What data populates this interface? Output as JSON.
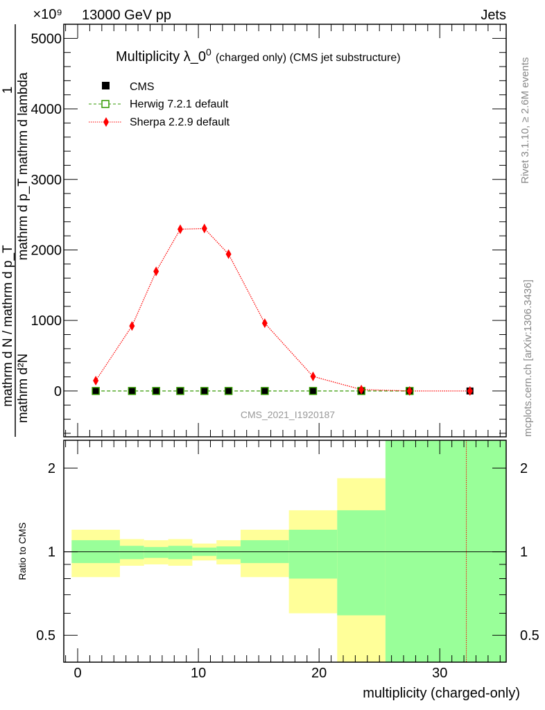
{
  "header": {
    "left": "13000 GeV pp",
    "right": "Jets",
    "exponent": "×10⁹",
    "side_top": "Rivet 3.1.10, ≥ 2.6M events",
    "side_bottom": "mcplots.cern.ch [arXiv:1306.3436]",
    "watermark": "CMS_2021_I1920187"
  },
  "chart_data": [
    {
      "type": "line",
      "title_main": "Multiplicity λ_0",
      "title_sup": "0",
      "title_sub": "(charged only) (CMS jet substructure)",
      "ylabel_outer_num": "1",
      "ylabel_outer_den": "mathrm d N / mathrm d p_T",
      "ylabel_inner_num": "mathrm d²N",
      "ylabel_inner_den": "mathrm d p_T mathrm d lambda",
      "xlim": [
        -1.15,
        35.5
      ],
      "ylim": [
        -650,
        5200
      ],
      "yticks": [
        0,
        1000,
        2000,
        3000,
        4000,
        5000
      ],
      "ytick_labels": [
        "0",
        "1000",
        "2000",
        "3000",
        "4000",
        "5000"
      ],
      "series": [
        {
          "name": "CMS",
          "color": "#000000",
          "marker": "square",
          "x": [
            1.5,
            4.5,
            6.5,
            8.5,
            10.5,
            12.5,
            15.5,
            19.5,
            23.5,
            27.5,
            32.5
          ],
          "y": [
            0,
            0,
            0,
            0,
            0,
            0,
            0,
            0,
            0,
            0,
            0
          ]
        },
        {
          "name": "Herwig 7.2.1 default",
          "color": "#339900",
          "marker": "open-square",
          "line": "dashed",
          "x": [
            1.5,
            4.5,
            6.5,
            8.5,
            10.5,
            12.5,
            15.5,
            19.5,
            23.5,
            27.5
          ],
          "y": [
            0,
            0,
            0,
            0,
            0,
            0,
            0,
            0,
            0,
            0
          ]
        },
        {
          "name": "Sherpa 2.2.9 default",
          "color": "#ff0000",
          "marker": "diamond",
          "line": "dotted",
          "x": [
            1.5,
            4.5,
            6.5,
            8.5,
            10.5,
            12.5,
            15.5,
            19.5,
            23.5,
            27.5,
            32.5
          ],
          "y": [
            147,
            922,
            1696,
            2294,
            2304,
            1941,
            961,
            206,
            20,
            0,
            0
          ]
        }
      ],
      "legend": "top-left"
    },
    {
      "type": "area",
      "ylabel": "Ratio to CMS",
      "xlabel": "multiplicity (charged-only)",
      "yscale": "log",
      "xlim": [
        -1.15,
        35.5
      ],
      "ylim": [
        0.4,
        2.52
      ],
      "yticks": [
        0.5,
        1,
        2
      ],
      "ytick_labels": [
        "0.5",
        "1",
        "2"
      ],
      "xticks": [
        0,
        10,
        20,
        30
      ],
      "xtick_labels": [
        "0",
        "10",
        "20",
        "30"
      ],
      "bins": [
        {
          "lo": -0.5,
          "hi": 3.5,
          "yellow": [
            0.81,
            1.2
          ],
          "green": [
            0.91,
            1.1
          ]
        },
        {
          "lo": 3.5,
          "hi": 5.5,
          "yellow": [
            0.89,
            1.11
          ],
          "green": [
            0.94,
            1.05
          ]
        },
        {
          "lo": 5.5,
          "hi": 7.5,
          "yellow": [
            0.9,
            1.1
          ],
          "green": [
            0.95,
            1.04
          ]
        },
        {
          "lo": 7.5,
          "hi": 9.5,
          "yellow": [
            0.89,
            1.11
          ],
          "green": [
            0.94,
            1.05
          ]
        },
        {
          "lo": 9.5,
          "hi": 11.5,
          "yellow": [
            0.93,
            1.07
          ],
          "green": [
            0.966,
            1.035
          ]
        },
        {
          "lo": 11.5,
          "hi": 13.5,
          "yellow": [
            0.9,
            1.1
          ],
          "green": [
            0.94,
            1.045
          ]
        },
        {
          "lo": 13.5,
          "hi": 17.5,
          "yellow": [
            0.81,
            1.2
          ],
          "green": [
            0.91,
            1.1
          ]
        },
        {
          "lo": 17.5,
          "hi": 21.5,
          "yellow": [
            0.6,
            1.41
          ],
          "green": [
            0.8,
            1.2
          ]
        },
        {
          "lo": 21.5,
          "hi": 25.5,
          "yellow": [
            0.3,
            1.84
          ],
          "green": [
            0.59,
            1.41
          ]
        },
        {
          "lo": 25.5,
          "hi": 35.5,
          "yellow": [
            0.3,
            3.0
          ],
          "green": [
            0.3,
            3.0
          ]
        }
      ],
      "sherpa_ratio_line_x": 32.2,
      "colors": {
        "yellow": "#ffff99",
        "green": "#99ff99",
        "sherpa": "#ff0000"
      }
    }
  ]
}
